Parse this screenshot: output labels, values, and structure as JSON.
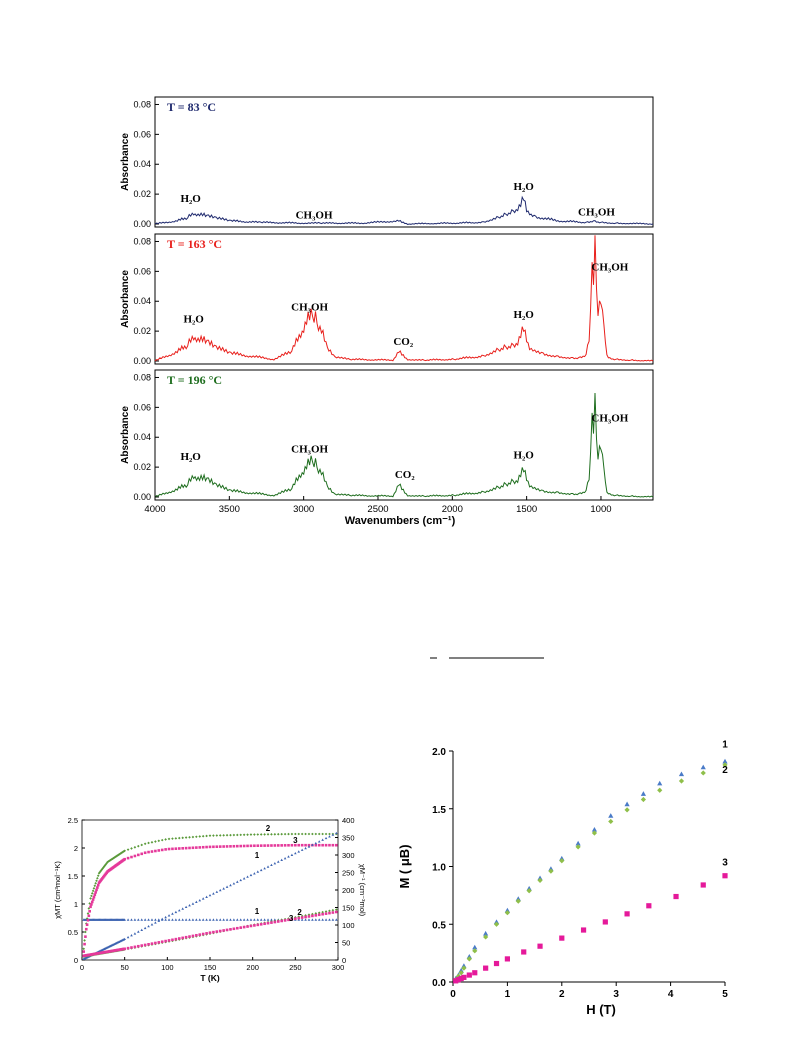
{
  "chart_data": [
    {
      "type": "line",
      "xlabel": "Wavenumbers (cm⁻¹)",
      "xlim": [
        4000,
        650
      ],
      "x_ticks": [
        "4000",
        "3500",
        "3000",
        "2500",
        "2000",
        "1500",
        "1000"
      ],
      "panels": [
        {
          "name": "T = 83 °C",
          "color": "#1f2a6e",
          "ylabel": "Absorbance",
          "ylim": [
            -0.002,
            0.085
          ],
          "y_ticks": [
            "0.00",
            "0.02",
            "0.04",
            "0.06",
            "0.08"
          ],
          "annotations": [
            {
              "text": "H₂O",
              "x": 3760,
              "y": 0.012
            },
            {
              "text": "CH₃OH",
              "x": 2930,
              "y": 0.001
            },
            {
              "text": "H₂O",
              "x": 1520,
              "y": 0.02
            },
            {
              "text": "CH₃OH",
              "x": 1030,
              "y": 0.003
            }
          ],
          "x": [
            4000,
            3850,
            3780,
            3740,
            3700,
            3650,
            3600,
            3500,
            3300,
            3000,
            2900,
            2600,
            2360,
            2340,
            2300,
            2000,
            1800,
            1700,
            1650,
            1600,
            1560,
            1540,
            1520,
            1500,
            1450,
            1300,
            1100,
            1050,
            1000,
            900,
            650
          ],
          "y": [
            0.0,
            0.002,
            0.004,
            0.007,
            0.006,
            0.005,
            0.004,
            0.002,
            0.001,
            0.0005,
            0.0005,
            0.0005,
            0.002,
            0.001,
            0.0,
            0.0005,
            0.001,
            0.004,
            0.006,
            0.008,
            0.01,
            0.012,
            0.016,
            0.009,
            0.005,
            0.002,
            0.001,
            0.002,
            0.001,
            0.0005,
            0.0
          ]
        },
        {
          "name": "T = 163 °C",
          "color": "#e8201c",
          "ylabel": "Absorbance",
          "ylim": [
            -0.002,
            0.085
          ],
          "y_ticks": [
            "0.00",
            "0.02",
            "0.04",
            "0.06",
            "0.08"
          ],
          "annotations": [
            {
              "text": "H₂O",
              "x": 3740,
              "y": 0.023
            },
            {
              "text": "CH₃OH",
              "x": 2960,
              "y": 0.031
            },
            {
              "text": "CO₂",
              "x": 2330,
              "y": 0.008
            },
            {
              "text": "H₂O",
              "x": 1520,
              "y": 0.026
            },
            {
              "text": "CH₃OH",
              "x": 940,
              "y": 0.058
            }
          ],
          "x": [
            4000,
            3850,
            3780,
            3740,
            3700,
            3650,
            3600,
            3500,
            3200,
            3080,
            3020,
            2980,
            2950,
            2920,
            2880,
            2850,
            2800,
            2700,
            2400,
            2360,
            2340,
            2300,
            2200,
            2000,
            1800,
            1700,
            1650,
            1600,
            1560,
            1520,
            1500,
            1480,
            1400,
            1300,
            1200,
            1150,
            1100,
            1080,
            1070,
            1060,
            1050,
            1045,
            1040,
            1030,
            1020,
            1010,
            1000,
            990,
            980,
            960,
            950,
            900,
            800,
            650
          ],
          "y": [
            0.0,
            0.006,
            0.01,
            0.016,
            0.014,
            0.012,
            0.009,
            0.005,
            0.001,
            0.006,
            0.018,
            0.026,
            0.028,
            0.027,
            0.02,
            0.01,
            0.003,
            0.001,
            0.0005,
            0.006,
            0.004,
            0.001,
            0.0005,
            0.001,
            0.003,
            0.007,
            0.009,
            0.01,
            0.012,
            0.02,
            0.014,
            0.009,
            0.005,
            0.003,
            0.002,
            0.002,
            0.004,
            0.015,
            0.035,
            0.053,
            0.048,
            0.065,
            0.075,
            0.04,
            0.03,
            0.032,
            0.036,
            0.03,
            0.02,
            0.005,
            0.002,
            0.001,
            0.0005,
            0.0
          ]
        },
        {
          "name": "T = 196 °C",
          "color": "#1f6e1f",
          "ylabel": "Absorbance",
          "ylim": [
            -0.002,
            0.085
          ],
          "y_ticks": [
            "0.00",
            "0.02",
            "0.04",
            "0.06",
            "0.08"
          ],
          "annotations": [
            {
              "text": "H₂O",
              "x": 3760,
              "y": 0.022
            },
            {
              "text": "CH₃OH",
              "x": 2960,
              "y": 0.027
            },
            {
              "text": "CO₂",
              "x": 2320,
              "y": 0.01
            },
            {
              "text": "H₂O",
              "x": 1520,
              "y": 0.023
            },
            {
              "text": "CH₃OH",
              "x": 940,
              "y": 0.048
            }
          ],
          "x": [
            4000,
            3850,
            3780,
            3740,
            3700,
            3650,
            3600,
            3500,
            3200,
            3080,
            3020,
            2980,
            2950,
            2920,
            2880,
            2850,
            2800,
            2700,
            2400,
            2360,
            2340,
            2300,
            2200,
            2000,
            1800,
            1700,
            1650,
            1600,
            1560,
            1520,
            1500,
            1480,
            1400,
            1300,
            1200,
            1150,
            1100,
            1080,
            1070,
            1060,
            1050,
            1045,
            1040,
            1030,
            1020,
            1010,
            1000,
            990,
            980,
            960,
            950,
            900,
            800,
            650
          ],
          "y": [
            0.0,
            0.005,
            0.008,
            0.014,
            0.012,
            0.011,
            0.008,
            0.004,
            0.001,
            0.005,
            0.015,
            0.02,
            0.022,
            0.021,
            0.016,
            0.008,
            0.002,
            0.001,
            0.0005,
            0.008,
            0.005,
            0.001,
            0.0005,
            0.001,
            0.003,
            0.006,
            0.008,
            0.01,
            0.011,
            0.017,
            0.012,
            0.008,
            0.004,
            0.003,
            0.002,
            0.002,
            0.004,
            0.013,
            0.03,
            0.045,
            0.04,
            0.055,
            0.062,
            0.032,
            0.025,
            0.027,
            0.03,
            0.025,
            0.016,
            0.004,
            0.002,
            0.001,
            0.0005,
            0.0
          ]
        }
      ]
    },
    {
      "type": "scatter",
      "xlabel": "T (K)",
      "ylabel": "χMT (cm³mol⁻¹K)",
      "y2label": "χM⁻¹ (cm⁻³mol)",
      "xlim": [
        0,
        300
      ],
      "ylim": [
        0,
        2.5
      ],
      "y2lim": [
        0,
        400
      ],
      "x_ticks": [
        "0",
        "50",
        "100",
        "150",
        "200",
        "250",
        "300"
      ],
      "y_ticks": [
        "0",
        "0.5",
        "1",
        "1.5",
        "2",
        "2.5"
      ],
      "y2_ticks": [
        "0",
        "50",
        "100",
        "150",
        "200",
        "250",
        "300",
        "350",
        "400"
      ],
      "series": [
        {
          "name": "1",
          "axis": "left",
          "color": "#3b62b0",
          "marker": "triangle",
          "x": [
            2,
            300
          ],
          "y": [
            0.72,
            0.72
          ]
        },
        {
          "name": "2",
          "axis": "left",
          "color": "#5a9a3a",
          "marker": "diamond",
          "x": [
            2,
            5,
            10,
            20,
            30,
            50,
            75,
            100,
            150,
            200,
            250,
            300
          ],
          "y": [
            0.2,
            0.65,
            1.1,
            1.55,
            1.75,
            1.95,
            2.08,
            2.16,
            2.22,
            2.24,
            2.25,
            2.25
          ]
        },
        {
          "name": "3",
          "axis": "left",
          "color": "#e5399a",
          "marker": "square",
          "x": [
            2,
            5,
            10,
            20,
            30,
            50,
            75,
            100,
            150,
            200,
            250,
            300
          ],
          "y": [
            0.15,
            0.55,
            0.95,
            1.38,
            1.58,
            1.8,
            1.92,
            1.98,
            2.02,
            2.04,
            2.05,
            2.05
          ]
        },
        {
          "name": "1",
          "axis": "right",
          "color": "#3b62b0",
          "marker": "triangle",
          "x": [
            2,
            50,
            100,
            150,
            200,
            250,
            300
          ],
          "y": [
            3,
            60,
            125,
            185,
            245,
            305,
            365
          ]
        },
        {
          "name": "2",
          "axis": "right",
          "color": "#5a9a3a",
          "marker": "diamond",
          "x": [
            2,
            50,
            100,
            150,
            200,
            250,
            300
          ],
          "y": [
            10,
            30,
            52,
            75,
            100,
            122,
            145
          ]
        },
        {
          "name": "3",
          "axis": "right",
          "color": "#e5399a",
          "marker": "square",
          "x": [
            2,
            50,
            100,
            150,
            200,
            250,
            300
          ],
          "y": [
            12,
            32,
            55,
            78,
            98,
            118,
            138
          ]
        }
      ],
      "labels": [
        {
          "text": "2",
          "x": 218,
          "y": 2.3
        },
        {
          "text": "3",
          "x": 250,
          "y": 2.09
        },
        {
          "text": "1",
          "x": 205,
          "y": 1.82
        },
        {
          "text": "1",
          "x": 205,
          "y": 0.82
        },
        {
          "text": "2",
          "x": 255,
          "y": 0.8
        },
        {
          "text": "3",
          "x": 245,
          "y": 0.7
        }
      ]
    },
    {
      "type": "scatter",
      "xlabel": "H (T)",
      "ylabel": "M ( μB)",
      "xlim": [
        0,
        5
      ],
      "ylim": [
        0,
        2.0
      ],
      "x_ticks": [
        "0",
        "1",
        "2",
        "3",
        "4",
        "5"
      ],
      "y_ticks": [
        "0.0",
        "0.5",
        "1.0",
        "1.5",
        "2.0"
      ],
      "series": [
        {
          "name": "1",
          "color": "#4a7bc8",
          "marker": "triangle",
          "x": [
            0.05,
            0.1,
            0.15,
            0.2,
            0.3,
            0.4,
            0.6,
            0.8,
            1.0,
            1.2,
            1.4,
            1.6,
            1.8,
            2.0,
            2.3,
            2.6,
            2.9,
            3.2,
            3.5,
            3.8,
            4.2,
            4.6,
            5.0
          ],
          "y": [
            0.03,
            0.06,
            0.1,
            0.14,
            0.22,
            0.3,
            0.42,
            0.52,
            0.62,
            0.72,
            0.81,
            0.9,
            0.98,
            1.07,
            1.2,
            1.32,
            1.44,
            1.54,
            1.63,
            1.72,
            1.8,
            1.86,
            1.91
          ]
        },
        {
          "name": "2",
          "color": "#8fbf4a",
          "marker": "diamond",
          "x": [
            0.05,
            0.1,
            0.15,
            0.2,
            0.3,
            0.4,
            0.6,
            0.8,
            1.0,
            1.2,
            1.4,
            1.6,
            1.8,
            2.0,
            2.3,
            2.6,
            2.9,
            3.2,
            3.5,
            3.8,
            4.2,
            4.6,
            5.0
          ],
          "y": [
            0.02,
            0.05,
            0.08,
            0.12,
            0.2,
            0.27,
            0.39,
            0.5,
            0.6,
            0.7,
            0.79,
            0.88,
            0.96,
            1.05,
            1.17,
            1.29,
            1.39,
            1.49,
            1.58,
            1.66,
            1.74,
            1.81,
            1.88
          ]
        },
        {
          "name": "3",
          "color": "#e5199a",
          "marker": "square",
          "x": [
            0.05,
            0.1,
            0.15,
            0.2,
            0.3,
            0.4,
            0.6,
            0.8,
            1.0,
            1.3,
            1.6,
            2.0,
            2.4,
            2.8,
            3.2,
            3.6,
            4.1,
            4.6,
            5.0
          ],
          "y": [
            0.01,
            0.02,
            0.03,
            0.04,
            0.06,
            0.08,
            0.12,
            0.16,
            0.2,
            0.26,
            0.31,
            0.38,
            0.45,
            0.52,
            0.59,
            0.66,
            0.74,
            0.84,
            0.92
          ]
        }
      ],
      "labels": [
        {
          "text": "1",
          "x": 5.0,
          "y": 2.03
        },
        {
          "text": "2",
          "x": 5.0,
          "y": 1.81
        },
        {
          "text": "3",
          "x": 5.0,
          "y": 1.01
        }
      ]
    }
  ]
}
